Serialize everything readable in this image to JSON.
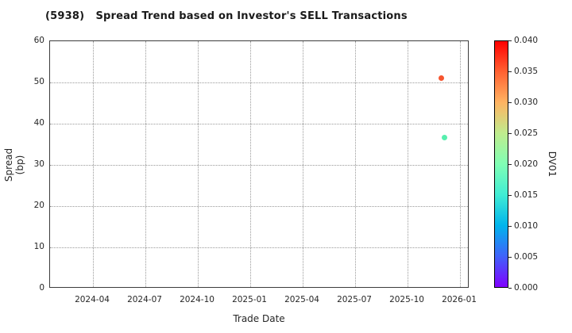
{
  "chart_data": {
    "type": "scatter",
    "title": "(5938)   Spread Trend based on Investor's SELL Transactions",
    "xlabel": "Trade Date",
    "ylabel": "Spread (bp)",
    "ylim": [
      0,
      60
    ],
    "y_ticks": [
      0,
      10,
      20,
      30,
      40,
      50,
      60
    ],
    "x_ticks": [
      "2024-04",
      "2024-07",
      "2024-10",
      "2025-01",
      "2025-04",
      "2025-07",
      "2025-10",
      "2026-01"
    ],
    "grid": "dotted",
    "legend": "none",
    "points": [
      {
        "date": "2025-11-29",
        "spread_bp": 51.0,
        "dv01": 0.035,
        "color": "#f6552f"
      },
      {
        "date": "2025-12-05",
        "spread_bp": 36.6,
        "dv01": 0.02,
        "color": "#57efae"
      }
    ],
    "colorbar": {
      "label": "DV01",
      "min": 0.0,
      "max": 0.04,
      "tick_labels": [
        "0.000",
        "0.005",
        "0.010",
        "0.015",
        "0.020",
        "0.025",
        "0.030",
        "0.035",
        "0.040"
      ],
      "colormap": "rainbow",
      "gradient_stops": [
        "#8000ff",
        "#4062fa",
        "#00b4ec",
        "#40ecd4",
        "#80ffb4",
        "#bfec8e",
        "#ffb462",
        "#ff6232",
        "#ff0000"
      ]
    }
  }
}
